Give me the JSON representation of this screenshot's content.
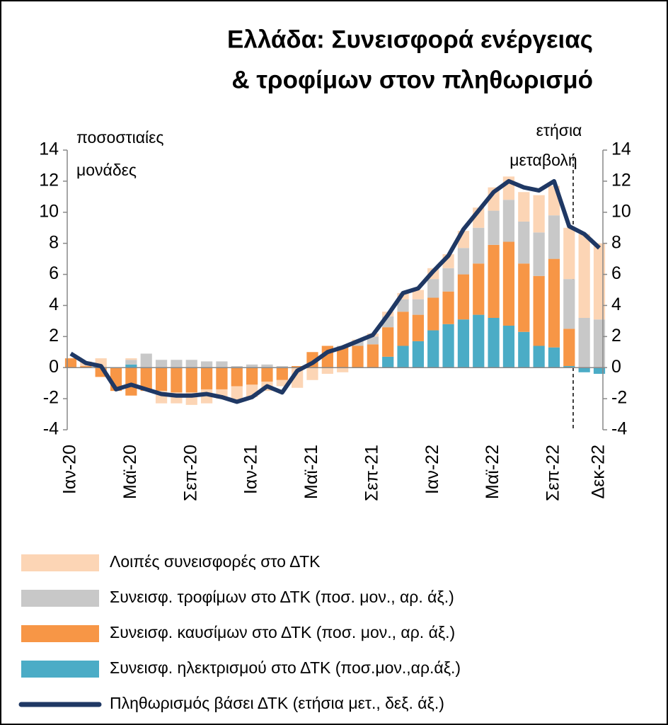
{
  "chart_data": {
    "type": "bar-line",
    "title": [
      "Ελλάδα: Συνεισφορά ενέργειας",
      "& τροφίμων στον πληθωρισμό"
    ],
    "y_label": [
      "ποσοστιαίες",
      "μονάδες"
    ],
    "y2_label": [
      "ετήσια",
      "μεταβολή"
    ],
    "categories": [
      "Ιαν-20",
      null,
      null,
      null,
      "Μαϊ-20",
      null,
      null,
      null,
      "Σεπ-20",
      null,
      null,
      null,
      "Ιαν-21",
      null,
      null,
      null,
      "Μαϊ-21",
      null,
      null,
      null,
      "Σεπ-21",
      null,
      null,
      null,
      "Ιαν-22",
      null,
      null,
      null,
      "Μαϊ-22",
      null,
      null,
      null,
      "Σεπ-22",
      null,
      null,
      "Δεκ-22"
    ],
    "ylim": [
      -4,
      14
    ],
    "yticks": [
      -4,
      -2,
      0,
      2,
      4,
      6,
      8,
      10,
      12,
      14
    ],
    "y2lim": [
      -4,
      14
    ],
    "y2ticks": [
      -4,
      -2,
      0,
      2,
      4,
      6,
      8,
      10,
      12,
      14
    ],
    "series": [
      {
        "name": "Λοιπές συνεισφορές στο ΔΤΚ",
        "color": "#fcd5b5",
        "kind": "bar",
        "values": [
          0,
          0.3,
          0.6,
          0,
          0.1,
          0,
          -0.8,
          -0.7,
          -0.8,
          -0.9,
          -0.6,
          -0.9,
          -0.8,
          -0.6,
          -0.4,
          -1.3,
          -0.8,
          -0.4,
          -0.3,
          0.1,
          0.2,
          0.3,
          0.4,
          0.6,
          0.7,
          0.9,
          1.1,
          1.3,
          1.5,
          1.5,
          1.9,
          2.4,
          1.9,
          3.3,
          5.4,
          4.9
        ]
      },
      {
        "name": "Συνεισφ. τροφίμων στο ΔΤΚ (ποσ. μον., αρ. άξ.)",
        "color": "#c8c8c8",
        "kind": "bar",
        "values": [
          0,
          0,
          0,
          0,
          0.3,
          0.9,
          0.5,
          0.5,
          0.5,
          0.4,
          0.4,
          0.1,
          0.2,
          0.2,
          0.1,
          0,
          0,
          0,
          0.1,
          0.3,
          0.5,
          0.7,
          0.8,
          1.0,
          1.2,
          1.5,
          1.7,
          2.3,
          2.2,
          2.7,
          2.7,
          2.8,
          2.8,
          3.2,
          3.2,
          3.1
        ]
      },
      {
        "name": "Συνεισφ. καυσίμων στο ΔΤΚ (ποσ. μον., αρ. άξ.)",
        "color": "#f79646",
        "kind": "bar",
        "values": [
          0.6,
          0.1,
          -0.6,
          -1.5,
          -1.8,
          -1.5,
          -1.5,
          -1.6,
          -1.6,
          -1.4,
          -1.4,
          -1.2,
          -1.1,
          -0.9,
          -0.8,
          0.1,
          1.0,
          1.4,
          1.3,
          1.4,
          1.5,
          1.9,
          2.2,
          1.7,
          2.1,
          2.1,
          2.9,
          3.3,
          4.7,
          5.4,
          4.4,
          4.5,
          5.7,
          2.4,
          0,
          0
        ]
      },
      {
        "name": "Συνεισφ. ηλεκτρισμού στο ΔΤΚ (ποσ.μον.,αρ.άξ.)",
        "color": "#4bacc6",
        "kind": "bar",
        "values": [
          0,
          0,
          0,
          0,
          0.2,
          0,
          0,
          0,
          0,
          0,
          0,
          0,
          0,
          0,
          0,
          0,
          0,
          0,
          0,
          0,
          0,
          0.7,
          1.4,
          1.7,
          2.4,
          2.8,
          3.1,
          3.4,
          3.2,
          2.7,
          2.3,
          1.4,
          1.3,
          0.1,
          -0.3,
          -0.4
        ]
      },
      {
        "name": "Πληθωρισμός βάσει ΔΤΚ (ετήσια μετ., δεξ. άξ.)",
        "color": "#1f3864",
        "kind": "line",
        "axis": "y2",
        "values": [
          0.9,
          0.3,
          0.1,
          -1.4,
          -1.1,
          -1.4,
          -1.7,
          -1.8,
          -1.8,
          -1.7,
          -1.9,
          -2.2,
          -1.9,
          -1.2,
          -1.6,
          -0.2,
          0.3,
          1.0,
          1.3,
          1.7,
          2.1,
          3.4,
          4.8,
          5.1,
          6.2,
          7.2,
          8.9,
          10.1,
          11.3,
          12.0,
          11.6,
          11.4,
          12.0,
          9.1,
          8.6,
          7.7
        ]
      }
    ]
  }
}
